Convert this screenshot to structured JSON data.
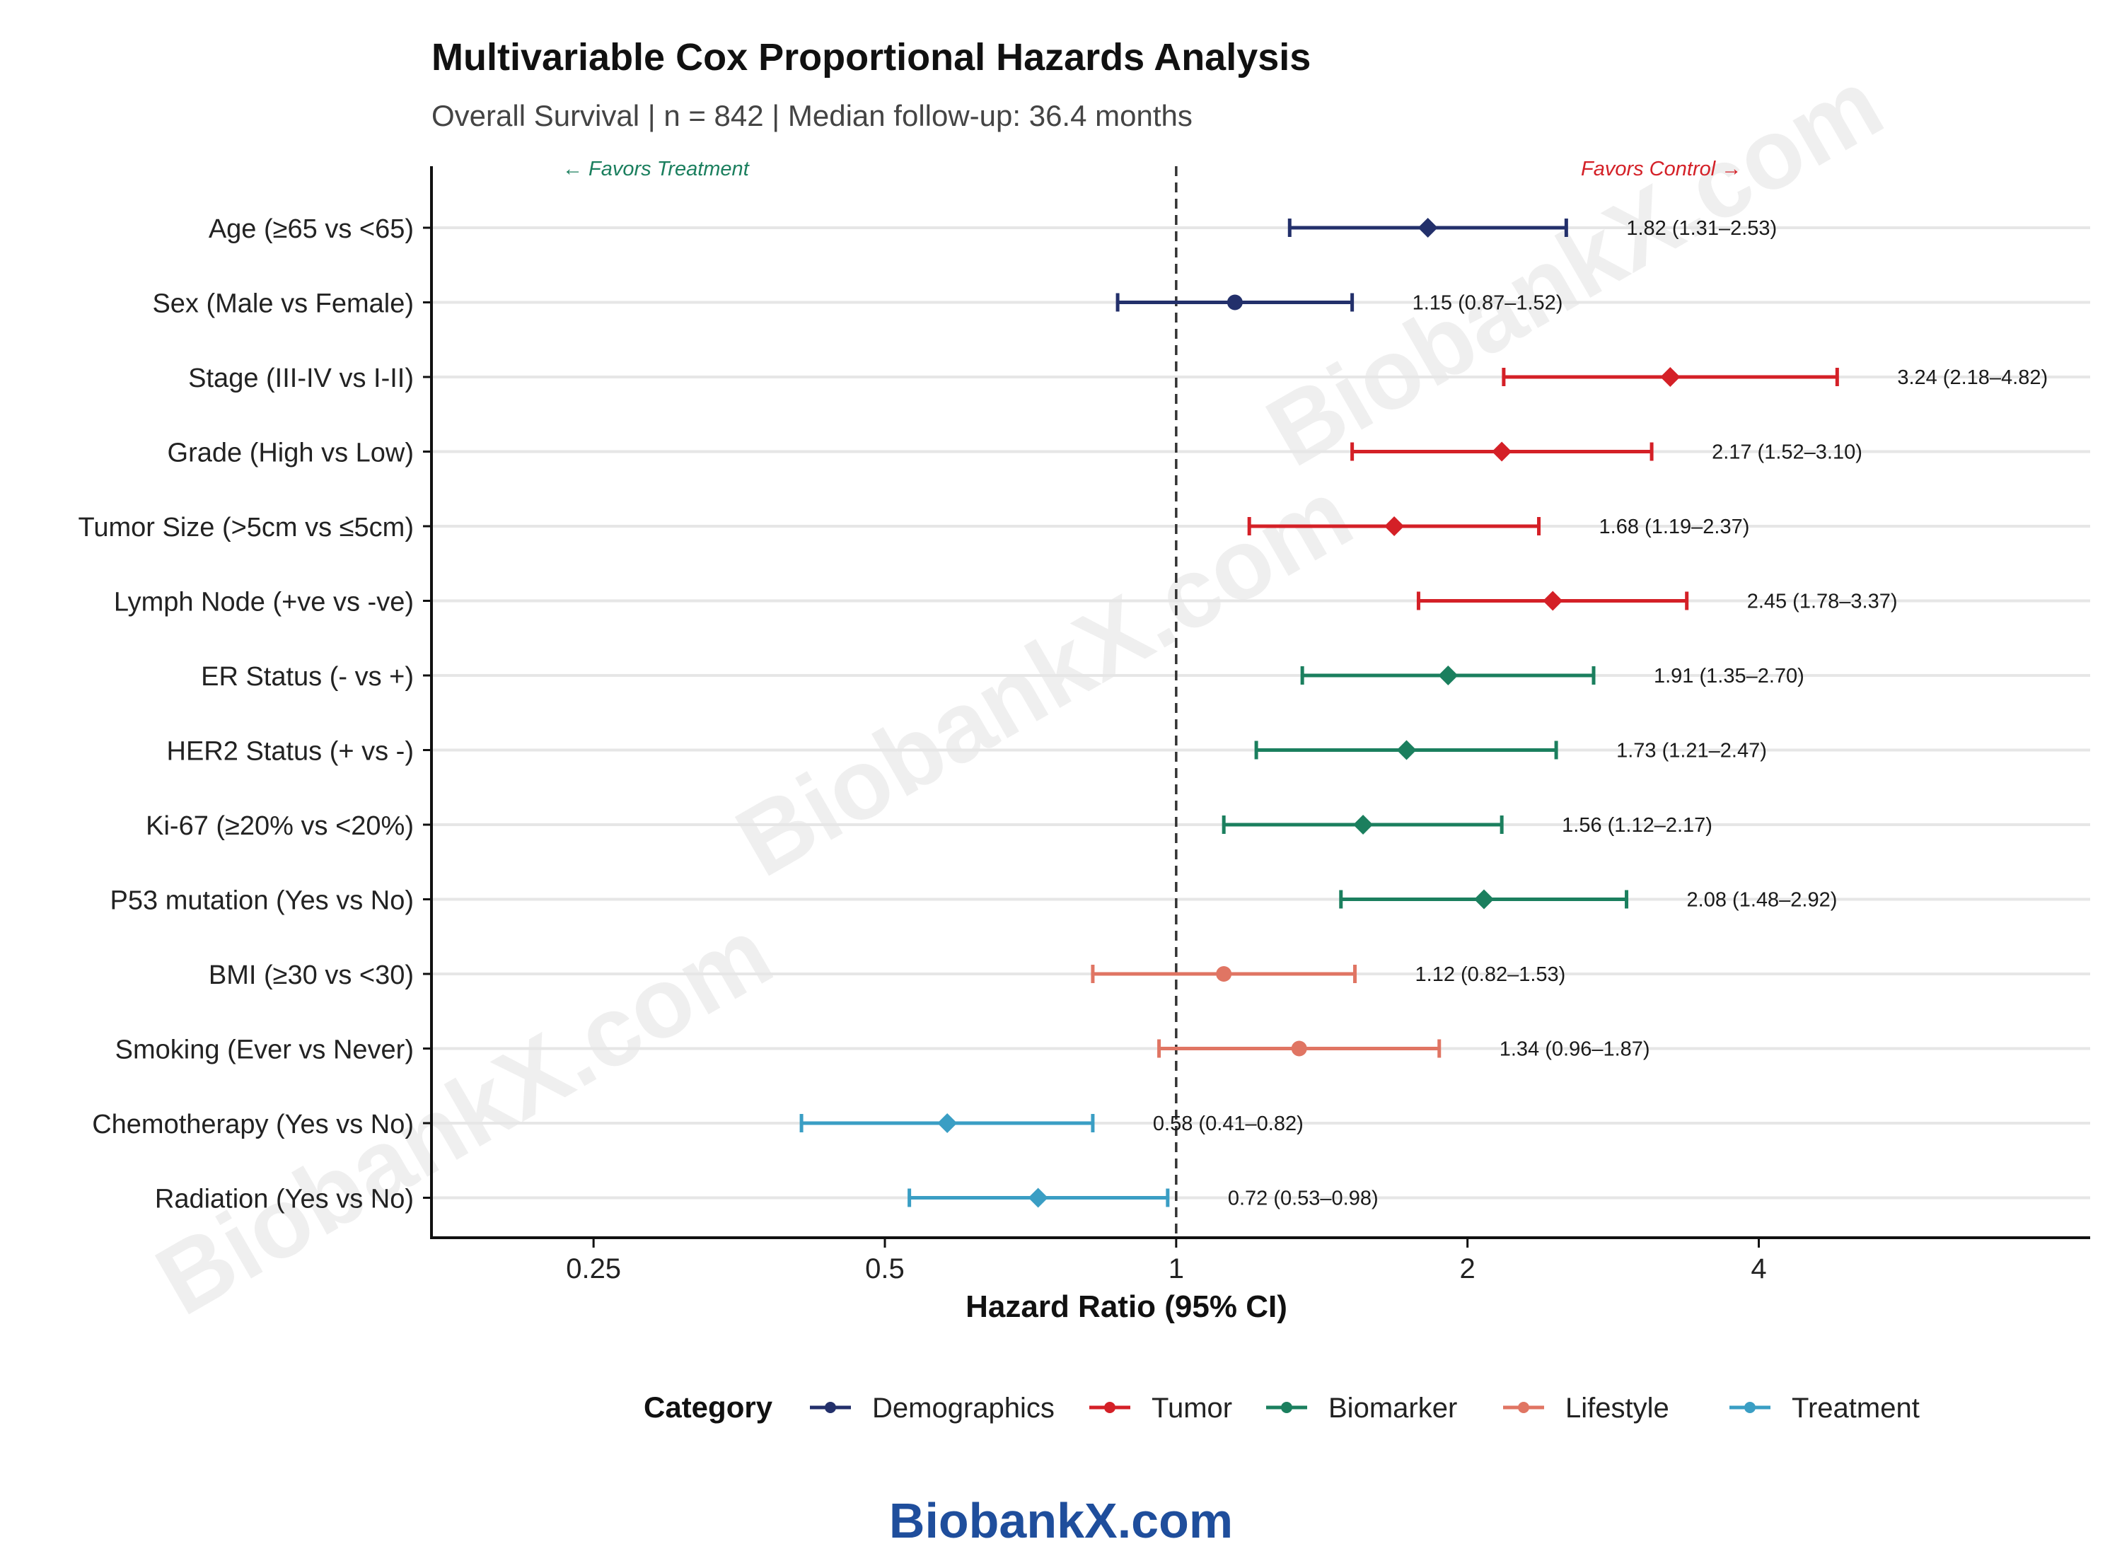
{
  "chart_data": {
    "type": "forest",
    "title": "Multivariable Cox Proportional Hazards Analysis",
    "subtitle": "Overall Survival | n = 842 | Median follow-up: 36.4 months",
    "xlabel": "Hazard Ratio (95% CI)",
    "x_scale": "log2",
    "xlim": [
      0.17,
      8.8
    ],
    "x_ticks": [
      0.25,
      0.5,
      1,
      2,
      4
    ],
    "x_tick_labels": [
      "0.25",
      "0.5",
      "1",
      "2",
      "4"
    ],
    "reference_line": 1,
    "annotations": {
      "left": "← Favors Treatment",
      "right": "Favors Control →"
    },
    "legend": {
      "title": "Category",
      "position": "bottom",
      "entries": [
        {
          "name": "Demographics",
          "color": "#23306b"
        },
        {
          "name": "Tumor",
          "color": "#d42027"
        },
        {
          "name": "Biomarker",
          "color": "#1b7f5e"
        },
        {
          "name": "Lifestyle",
          "color": "#e07563"
        },
        {
          "name": "Treatment",
          "color": "#3a9ec4"
        }
      ]
    },
    "rows": [
      {
        "label": "Age (≥65 vs <65)",
        "hr": 1.82,
        "lo": 1.31,
        "hi": 2.53,
        "category": "Demographics",
        "text": "1.82 (1.31–2.53)"
      },
      {
        "label": "Sex (Male vs Female)",
        "hr": 1.15,
        "lo": 0.87,
        "hi": 1.52,
        "category": "Demographics",
        "text": "1.15 (0.87–1.52)"
      },
      {
        "label": "Stage (III-IV vs I-II)",
        "hr": 3.24,
        "lo": 2.18,
        "hi": 4.82,
        "category": "Tumor",
        "text": "3.24 (2.18–4.82)"
      },
      {
        "label": "Grade (High vs Low)",
        "hr": 2.17,
        "lo": 1.52,
        "hi": 3.1,
        "category": "Tumor",
        "text": "2.17 (1.52–3.10)"
      },
      {
        "label": "Tumor Size (>5cm vs ≤5cm)",
        "hr": 1.68,
        "lo": 1.19,
        "hi": 2.37,
        "category": "Tumor",
        "text": "1.68 (1.19–2.37)"
      },
      {
        "label": "Lymph Node (+ve vs -ve)",
        "hr": 2.45,
        "lo": 1.78,
        "hi": 3.37,
        "category": "Tumor",
        "text": "2.45 (1.78–3.37)"
      },
      {
        "label": "ER Status (- vs +)",
        "hr": 1.91,
        "lo": 1.35,
        "hi": 2.7,
        "category": "Biomarker",
        "text": "1.91 (1.35–2.70)"
      },
      {
        "label": "HER2 Status (+ vs -)",
        "hr": 1.73,
        "lo": 1.21,
        "hi": 2.47,
        "category": "Biomarker",
        "text": "1.73 (1.21–2.47)"
      },
      {
        "label": "Ki-67 (≥20% vs <20%)",
        "hr": 1.56,
        "lo": 1.12,
        "hi": 2.17,
        "category": "Biomarker",
        "text": "1.56 (1.12–2.17)"
      },
      {
        "label": "P53 mutation (Yes vs No)",
        "hr": 2.08,
        "lo": 1.48,
        "hi": 2.92,
        "category": "Biomarker",
        "text": "2.08 (1.48–2.92)"
      },
      {
        "label": "BMI (≥30 vs <30)",
        "hr": 1.12,
        "lo": 0.82,
        "hi": 1.53,
        "category": "Lifestyle",
        "text": "1.12 (0.82–1.53)"
      },
      {
        "label": "Smoking (Ever vs Never)",
        "hr": 1.34,
        "lo": 0.96,
        "hi": 1.87,
        "category": "Lifestyle",
        "text": "1.34 (0.96–1.87)"
      },
      {
        "label": "Chemotherapy (Yes vs No)",
        "hr": 0.58,
        "lo": 0.41,
        "hi": 0.82,
        "category": "Treatment",
        "text": "0.58 (0.41–0.82)"
      },
      {
        "label": "Radiation (Yes vs No)",
        "hr": 0.72,
        "lo": 0.53,
        "hi": 0.98,
        "category": "Treatment",
        "text": "0.72 (0.53–0.98)"
      }
    ]
  },
  "watermark": "BiobankX.com",
  "footer": "BiobankX.com"
}
